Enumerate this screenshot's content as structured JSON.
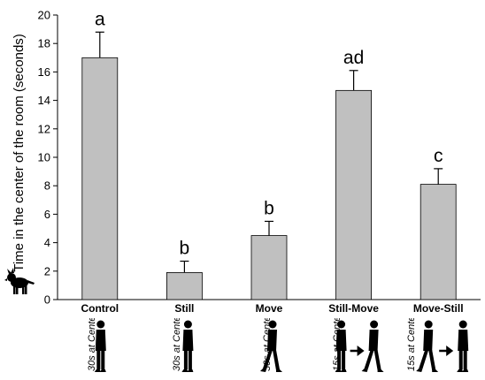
{
  "chart_data": {
    "type": "bar",
    "ylabel": "Time in the center of the room (seconds)",
    "ylim": [
      0,
      20
    ],
    "yticks": [
      0,
      2,
      4,
      6,
      8,
      10,
      12,
      14,
      16,
      18,
      20
    ],
    "categories": [
      "Control",
      "Still",
      "Move",
      "Still-Move",
      "Move-Still"
    ],
    "values": [
      17.0,
      1.9,
      4.5,
      14.7,
      8.1
    ],
    "errors": [
      1.8,
      0.8,
      1.0,
      1.4,
      1.1
    ],
    "significance_labels": [
      "a",
      "b",
      "b",
      "ad",
      "c"
    ],
    "bar_color": "#c0c0c0",
    "grid": false,
    "legend": "none",
    "condition_labels": [
      "30s at Center",
      "30s at Center",
      "30s at Center",
      "15s at Center",
      "15s at Center"
    ],
    "condition_icons": [
      "person-still-icon",
      "person-still-icon",
      "person-walking-icon",
      "person-still-to-walking-icon",
      "person-walking-to-still-icon"
    ],
    "axis_icon": "dog-icon"
  }
}
